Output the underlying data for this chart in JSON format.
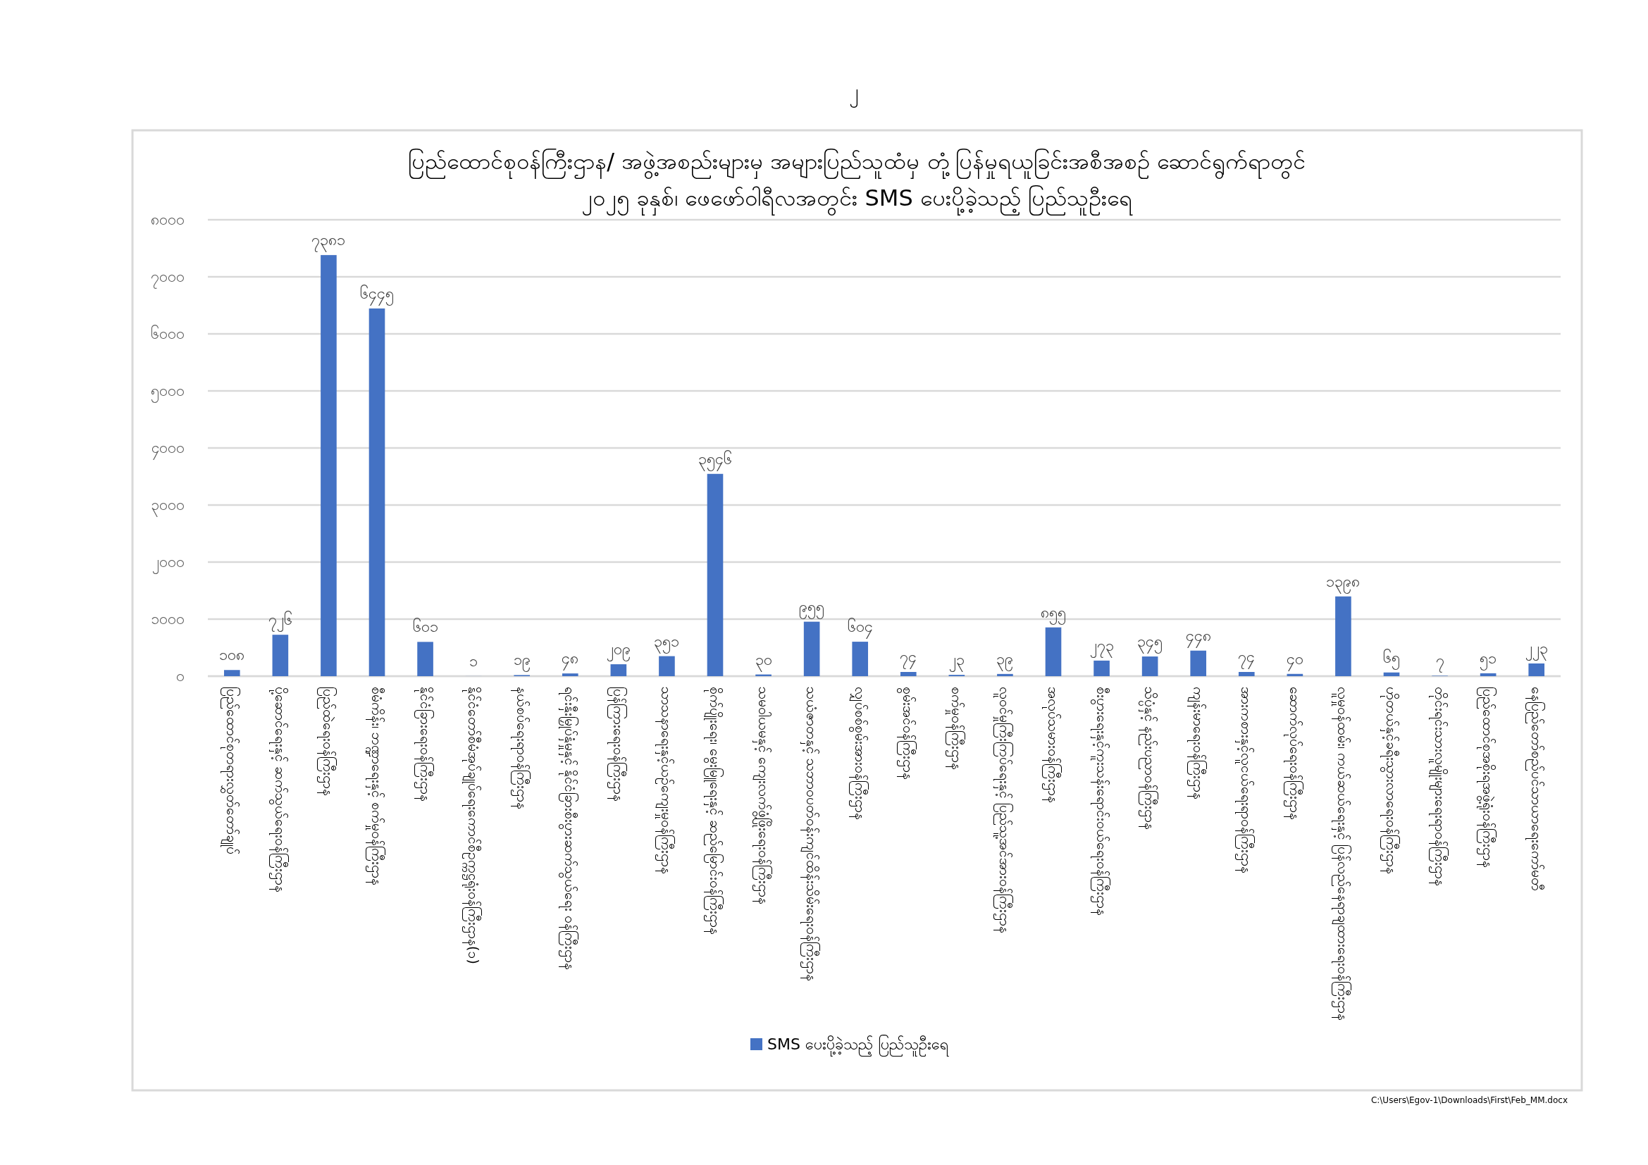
{
  "chart_data": {
    "type": "bar",
    "title": "ပြည်ထောင်စုဝန်ကြီးဌာန/ အဖွဲ့အစည်းများမှ အများပြည်သူထံမှ တုံ့ပြန်မှုရယူခြင်းအစီအစဉ် ဆောင်ရွက်ရာတွင်",
    "subtitle": "၂၀၂၅ ခုနှစ်၊ ဖေဖော်ဝါရီလအတွင်း SMS ပေးပို့ခဲ့သည့် ပြည်သူဦးရေ",
    "categories": [
      "ပြည်ထောင်စုတရားလွှတ်တော်ချုပ်",
      "ပို့ဆောင်ရေးနှင့် ဆက်သွယ်ရေးဝန်ကြီးဌာန",
      "ပြည်ထဲရေးဝန်ကြီးဌာန",
      "စီမံကိန်း၊ ဘဏ္ဍာရေးနှင့် စက်မှုဝန်ကြီးဌာန",
      "နိုင်ငံခြားရေးဝန်ကြီးဌာန",
      "နိုင်ငံတော်စီမံအုပ်ချုပ်ရေးကောင်စီဥက္ကဋ္ဌရုံးဝန်ကြီးဌာန(၁)",
      "နယ်စပ်ရေးရာဝန်ကြီးဌာန",
      "ရင်းနှီးမြှုပ်နှံမှုနှင့် နိုင်ငံခြားစီးပွားဆက်သွယ်ရေး ဝန်ကြီးဌာန",
      "ပြန်ကြားရေးဝန်ကြီးဌာန",
      "သာသနာရေးနှင့်ယဉ်ကျေးမှုဝန်ကြီးဌာန",
      "စိုက်ပျိုးရေး၊ မွေးမြူရေးနှင့် ဆည်မြောင်းဝန်ကြီးဌာန",
      "သမဝါယမနှင့် ကျေးလက်ဖွံ့ဖြိုးရေးဝန်ကြီးဌာန",
      "သယံဇာတနှင့် သဘာဝပတ်ဝန်းကျင်ထိန်းသိမ်းရေးဝန်ကြီးဌာန",
      "လျှပ်စစ်စွမ်းအားဝန်ကြီးဌာန",
      "စွမ်းအင်ဝန်ကြီးဌာန",
      "စက်မှုဝန်ကြီးဌာန",
      "လူဝင်မှုကြီးကြပ်ရေးနှင့် ပြည်သူ့အင်အားဝန်ကြီးဌာန",
      "အလုပ်သမားဝန်ကြီးဌာန",
      "စီးပွားရေးနှင့်ကူးသန်းရောင်းဝယ်ရေးဝန်ကြီးဌာန",
      "သိပ္ပံနှင့် နည်းပညာဝန်ကြီးဌာန",
      "ကျန်းမာရေးဝန်ကြီးဌာန",
      "အားကစားနှင့်လူငယ်ရေးရာဝန်ကြီးဌာန",
      "ဆောက်လုပ်ရေးဝန်ကြီးဌာန",
      "လူမှုဝန်ထမ်း၊ ကယ်ဆယ်ရေးနှင့် ပြန်လည်နေရာချထားရေးဝန်ကြီးဌာန",
      "ဟိုတယ်နှင့်ခရီးသွားလာရေးဝန်ကြီးဌာန",
      "တိုင်းရင်းသားလူမျိုးများရေးရာဝန်ကြီးဌာန",
      "ပြည်ထောင်စုအစိုးရအဖွဲ့ရုံးဝန်ကြီးဌာန",
      "နေပြည်တော်စည်ပင်သာယာရေးကော်မတီ"
    ],
    "series": [
      {
        "name": "SMS ပေးပို့ခဲ့သည့် ပြည်သူဦးရေ",
        "color": "#4472c4",
        "values": [
          108,
          726,
          7381,
          6445,
          601,
          1,
          19,
          48,
          209,
          351,
          3546,
          30,
          955,
          604,
          74,
          23,
          39,
          855,
          273,
          345,
          448,
          74,
          40,
          1398,
          65,
          7,
          51,
          223
        ],
        "value_labels": [
          "၁၀၈",
          "၇၂၆",
          "၇၃၈၁",
          "၆၄၄၅",
          "၆၀၁",
          "၁",
          "၁၉",
          "၄၈",
          "၂၀၉",
          "၃၅၁",
          "၃၅၄၆",
          "၃၀",
          "၉၅၅",
          "၆၀၄",
          "၇၄",
          "၂၃",
          "၃၉",
          "၈၅၅",
          "၂၇၃",
          "၃၄၅",
          "၄၄၈",
          "၇၄",
          "၄၀",
          "၁၃၉၈",
          "၆၅",
          "၇",
          "၅၁",
          "၂၂၃"
        ]
      }
    ],
    "ylim": [
      0,
      8000
    ],
    "yticks": [
      {
        "value": 0,
        "label": "၀"
      },
      {
        "value": 1000,
        "label": "၁၀၀၀"
      },
      {
        "value": 2000,
        "label": "၂၀၀၀"
      },
      {
        "value": 3000,
        "label": "၃၀၀၀"
      },
      {
        "value": 4000,
        "label": "၄၀၀၀"
      },
      {
        "value": 5000,
        "label": "၅၀၀၀"
      },
      {
        "value": 6000,
        "label": "၆၀၀၀"
      },
      {
        "value": 7000,
        "label": "၇၀၀၀"
      },
      {
        "value": 8000,
        "label": "၈၀၀၀"
      }
    ],
    "grid": "y",
    "legend": "bottom",
    "annotations": [
      "၂",
      "C:\\Users\\Egov-1\\Downloads\\First\\Feb_MM.docx"
    ]
  }
}
